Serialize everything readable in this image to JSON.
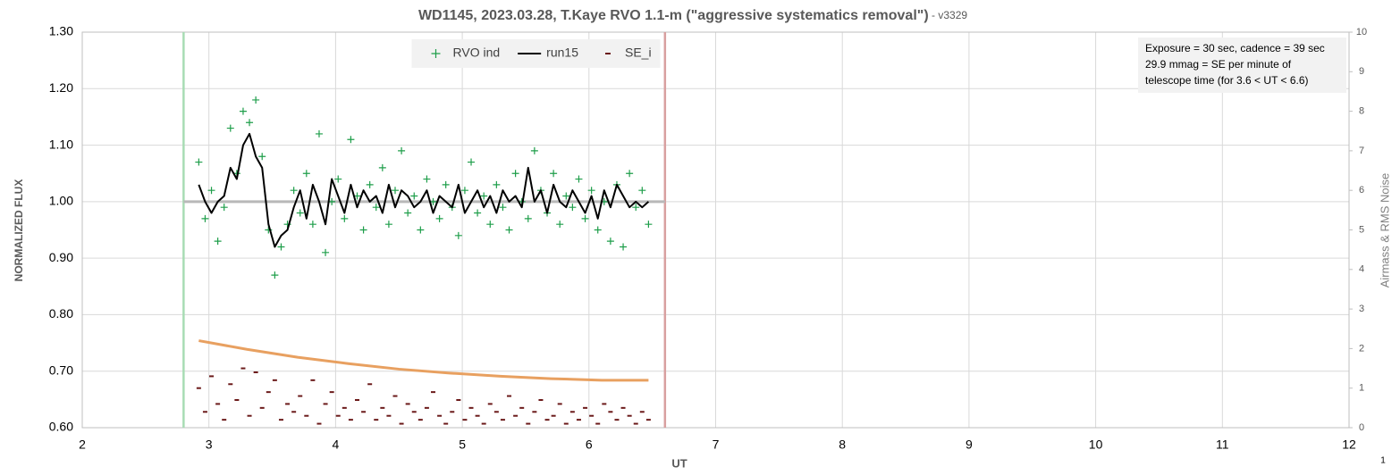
{
  "chart_data": {
    "type": "line",
    "title": "WD1145, 2023.03.28, T.Kaye RVO 1.1-m (\"aggressive systematics removal\")",
    "subtitle": " - v3329",
    "x_label": "UT",
    "y_label": "NORMALIZED FLUX",
    "y2_label": "Airmass & RMS Noise",
    "annotation": [
      "Exposure = 30 sec, cadence = 39 sec",
      "29.9 mmag = SE per minute of",
      "telescope time  (for 3.6 < UT < 6.6)"
    ],
    "corner_label": "1",
    "grid": true,
    "legend": "top",
    "xlim": [
      2,
      12
    ],
    "xticks": [
      2,
      3,
      4,
      5,
      6,
      7,
      8,
      9,
      10,
      11,
      12
    ],
    "ylim": [
      0.6,
      1.3
    ],
    "yticks": [
      {
        "value": 0.6,
        "label": "0.60"
      },
      {
        "value": 0.7,
        "label": "0.70"
      },
      {
        "value": 0.8,
        "label": "0.80"
      },
      {
        "value": 0.9,
        "label": "0.90"
      },
      {
        "value": 1.0,
        "label": "1.00"
      },
      {
        "value": 1.1,
        "label": "1.10"
      },
      {
        "value": 1.2,
        "label": "1.20"
      },
      {
        "value": 1.3,
        "label": "1.30"
      }
    ],
    "y2lim": [
      0,
      10
    ],
    "y2ticks": [
      0,
      1,
      2,
      3,
      4,
      5,
      6,
      7,
      8,
      9,
      10
    ],
    "vlines": [
      {
        "value": 2.8,
        "color": "#a8dcb4"
      },
      {
        "value": 6.6,
        "color": "#d8a0a0"
      }
    ],
    "hline": {
      "value": 1.0,
      "xrange": [
        2.8,
        6.6
      ],
      "color": "#b8b8b8"
    },
    "x": [
      2.92,
      2.97,
      3.02,
      3.07,
      3.12,
      3.17,
      3.22,
      3.27,
      3.32,
      3.37,
      3.42,
      3.47,
      3.52,
      3.57,
      3.62,
      3.67,
      3.72,
      3.77,
      3.82,
      3.87,
      3.92,
      3.97,
      4.02,
      4.07,
      4.12,
      4.17,
      4.22,
      4.27,
      4.32,
      4.37,
      4.42,
      4.47,
      4.52,
      4.57,
      4.62,
      4.67,
      4.72,
      4.77,
      4.82,
      4.87,
      4.92,
      4.97,
      5.02,
      5.07,
      5.12,
      5.17,
      5.22,
      5.27,
      5.32,
      5.37,
      5.42,
      5.47,
      5.52,
      5.57,
      5.62,
      5.67,
      5.72,
      5.77,
      5.82,
      5.87,
      5.92,
      5.97,
      6.02,
      6.07,
      6.12,
      6.17,
      6.22,
      6.27,
      6.32,
      6.37,
      6.42,
      6.47
    ],
    "series": [
      {
        "name": "RVO ind",
        "marker": "plus",
        "color": "#1e9e4a",
        "values": [
          1.07,
          0.97,
          1.02,
          0.93,
          0.99,
          1.13,
          1.05,
          1.16,
          1.14,
          1.18,
          1.08,
          0.95,
          0.87,
          0.92,
          0.96,
          1.02,
          0.98,
          1.05,
          0.96,
          1.12,
          0.91,
          1.0,
          1.04,
          0.97,
          1.11,
          1.01,
          0.95,
          1.03,
          0.99,
          1.06,
          0.96,
          1.02,
          1.09,
          0.98,
          1.01,
          0.95,
          1.04,
          1.0,
          0.97,
          1.03,
          0.99,
          0.94,
          1.02,
          1.07,
          0.98,
          1.01,
          0.96,
          1.03,
          0.99,
          0.95,
          1.05,
          1.0,
          0.97,
          1.09,
          1.02,
          0.98,
          1.05,
          0.96,
          1.01,
          0.99,
          1.04,
          0.97,
          1.02,
          0.95,
          1.0,
          0.93,
          1.03,
          0.92,
          1.05,
          0.99,
          1.02,
          0.96
        ]
      },
      {
        "name": "run15",
        "marker": "line",
        "color": "#000000",
        "values": [
          1.03,
          1.0,
          0.98,
          1.0,
          1.01,
          1.06,
          1.04,
          1.1,
          1.12,
          1.08,
          1.06,
          0.96,
          0.92,
          0.94,
          0.95,
          0.99,
          1.02,
          0.97,
          1.03,
          1.0,
          0.96,
          1.04,
          1.01,
          0.98,
          1.03,
          0.99,
          1.02,
          1.0,
          1.01,
          0.98,
          1.03,
          0.99,
          1.02,
          1.01,
          0.99,
          1.0,
          1.02,
          0.98,
          1.01,
          1.0,
          0.99,
          1.03,
          0.98,
          1.0,
          1.02,
          0.99,
          1.01,
          0.98,
          1.02,
          1.0,
          1.01,
          0.99,
          1.06,
          1.0,
          1.02,
          0.98,
          1.03,
          1.0,
          0.99,
          1.02,
          1.0,
          0.98,
          1.01,
          0.97,
          1.02,
          0.99,
          1.03,
          1.01,
          0.99,
          1.0,
          0.99,
          1.0
        ]
      },
      {
        "name": "SE_i",
        "marker": "dash",
        "color": "#6b1a1a",
        "axis": "y2",
        "values": [
          1.0,
          0.4,
          1.3,
          0.6,
          0.2,
          1.1,
          0.7,
          1.5,
          0.3,
          1.4,
          0.5,
          0.9,
          1.2,
          0.2,
          0.6,
          0.4,
          0.8,
          0.3,
          1.2,
          0.1,
          0.6,
          0.9,
          0.3,
          0.5,
          0.2,
          0.7,
          0.4,
          1.1,
          0.2,
          0.5,
          0.3,
          0.8,
          0.1,
          0.6,
          0.4,
          0.2,
          0.5,
          0.9,
          0.3,
          0.1,
          0.4,
          0.7,
          0.2,
          0.5,
          0.3,
          0.1,
          0.6,
          0.4,
          0.2,
          0.8,
          0.3,
          0.5,
          0.1,
          0.4,
          0.7,
          0.2,
          0.3,
          0.6,
          0.1,
          0.4,
          0.2,
          0.5,
          0.3,
          0.1,
          0.6,
          0.4,
          0.2,
          0.5,
          0.3,
          0.1,
          0.4,
          0.2
        ]
      },
      {
        "marker": "thickline",
        "color": "#e8a060",
        "axis": "y2",
        "x": [
          2.92,
          3.3,
          3.7,
          4.1,
          4.5,
          4.9,
          5.3,
          5.7,
          6.1,
          6.47
        ],
        "values": [
          2.2,
          1.98,
          1.78,
          1.62,
          1.48,
          1.38,
          1.3,
          1.24,
          1.2,
          1.2
        ]
      }
    ]
  }
}
